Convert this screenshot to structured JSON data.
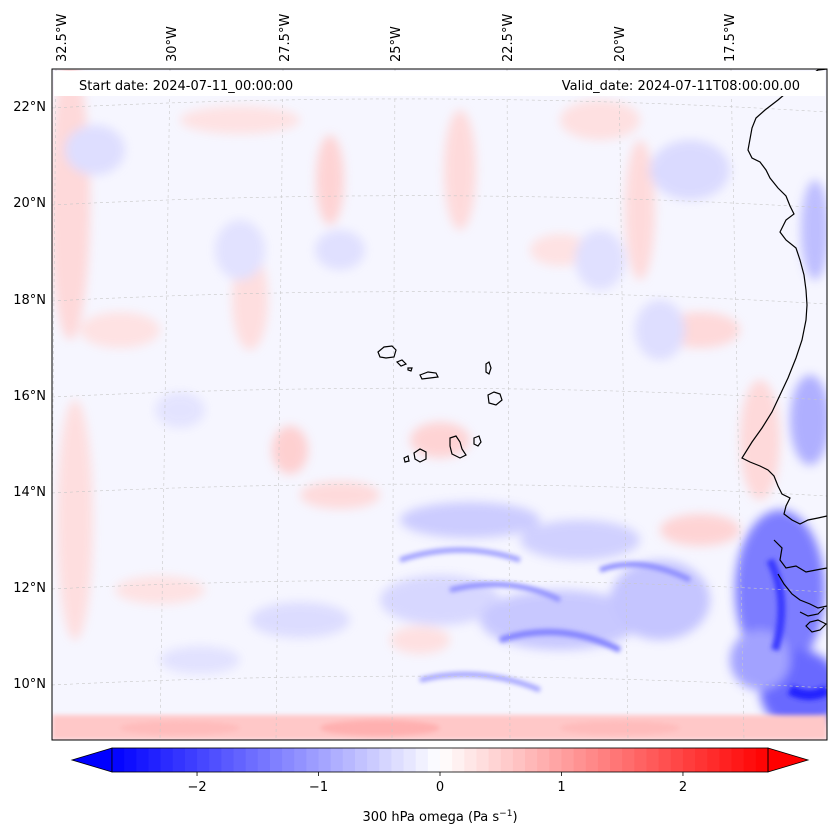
{
  "header": {
    "start_date": "Start date: 2024-07-11_00:00:00",
    "valid_date": "Valid_date: 2024-07-11T08:00:00.00"
  },
  "map": {
    "projection": "lambert-conformal",
    "variable": "300 hPa omega",
    "units": "Pa s⁻¹",
    "lon_labels": [
      "32.5°W",
      "30°W",
      "27.5°W",
      "25°W",
      "22.5°W",
      "20°W",
      "17.5°W"
    ],
    "lat_labels": [
      "22°N",
      "20°N",
      "18°N",
      "16°N",
      "14°N",
      "12°N",
      "10°N"
    ],
    "features": [
      "cape-verde-islands",
      "west-africa-coastline"
    ],
    "colors": {
      "negative": "#0000ff",
      "zero": "#ffffff",
      "positive": "#ff0000",
      "coast": "#000000"
    }
  },
  "colorbar": {
    "label": "300 hPa omega (Pa s",
    "label_exp": "−1",
    "label_close": ")",
    "tick_labels": [
      "−2",
      "−1",
      "0",
      "1",
      "2"
    ],
    "min": -2.7,
    "max": 2.7,
    "cmap": "bwr",
    "extend": "both"
  }
}
